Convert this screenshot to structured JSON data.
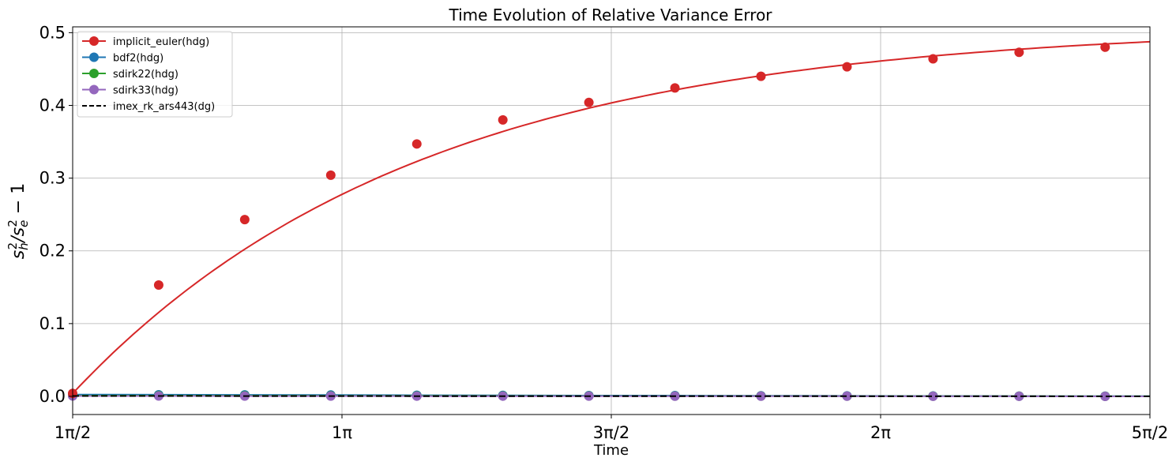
{
  "chart_data": {
    "type": "line",
    "title": "Time Evolution of Relative Variance Error",
    "xlabel": "Time",
    "ylabel_parts": {
      "s": "s",
      "sub_h": "h",
      "sup2a": "2",
      "slash": "/s",
      "sub_e": "e",
      "sup2b": "2",
      "minus": " − 1"
    },
    "xlim": [
      1.5708,
      7.854
    ],
    "ylim": [
      -0.025,
      0.508
    ],
    "x_ticks": [
      {
        "value": 1.5708,
        "label": "1π/2"
      },
      {
        "value": 3.1416,
        "label": "1π"
      },
      {
        "value": 4.7124,
        "label": "3π/2"
      },
      {
        "value": 6.2832,
        "label": "2π"
      },
      {
        "value": 7.854,
        "label": "5π/2"
      }
    ],
    "y_ticks": [
      {
        "value": 0.0,
        "label": "0.0"
      },
      {
        "value": 0.1,
        "label": "0.1"
      },
      {
        "value": 0.2,
        "label": "0.2"
      },
      {
        "value": 0.3,
        "label": "0.3"
      },
      {
        "value": 0.4,
        "label": "0.4"
      },
      {
        "value": 0.5,
        "label": "0.5"
      }
    ],
    "grid": true,
    "legend_position": "top-left",
    "x": [
      1.5708,
      2.0726,
      2.5744,
      3.0763,
      3.5781,
      4.0799,
      4.5817,
      5.0836,
      5.5854,
      6.0872,
      6.589,
      7.0909,
      7.5927
    ],
    "series": [
      {
        "name": "implicit_euler(hdg)",
        "color": "#d62728",
        "style": "solid",
        "marker": true,
        "values": [
          0.004,
          0.153,
          0.243,
          0.304,
          0.347,
          0.38,
          0.404,
          0.424,
          0.44,
          0.453,
          0.464,
          0.473,
          0.48
        ]
      },
      {
        "name": "bdf2(hdg)",
        "color": "#1f77b4",
        "style": "solid",
        "marker": true,
        "values": [
          0.0025,
          0.0022,
          0.002,
          0.0018,
          0.0015,
          0.0013,
          0.0011,
          0.001,
          0.0008,
          0.0006,
          0.0005,
          0.0003,
          0.0002
        ]
      },
      {
        "name": "sdirk22(hdg)",
        "color": "#2ca02c",
        "style": "solid",
        "marker": true,
        "values": [
          0.001,
          0.001,
          0.0009,
          0.0008,
          0.0007,
          0.0006,
          0.0005,
          0.0004,
          0.0004,
          0.0003,
          0.0002,
          0.0002,
          0.0001
        ]
      },
      {
        "name": "sdirk33(hdg)",
        "color": "#9467bd",
        "style": "solid",
        "marker": true,
        "values": [
          0.0005,
          0.0005,
          0.0004,
          0.0004,
          0.0003,
          0.0003,
          0.0003,
          0.0002,
          0.0002,
          0.0002,
          0.0001,
          0.0001,
          0.0
        ]
      },
      {
        "name": "imex_rk_ars443(dg)",
        "color": "#000000",
        "style": "dashed",
        "marker": false,
        "values": [
          0.0005,
          0.0005,
          0.0004,
          0.0004,
          0.0003,
          0.0003,
          0.0003,
          0.0002,
          0.0002,
          0.0002,
          0.0001,
          0.0001,
          0.0
        ]
      }
    ]
  }
}
